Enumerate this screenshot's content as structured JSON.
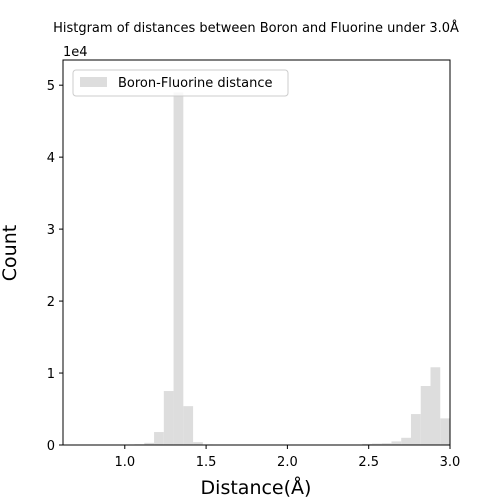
{
  "chart_data": {
    "type": "bar",
    "title": "Histgram of distances between Boron and Fluorine under 3.0Å",
    "xlabel": "Distance(Å)",
    "ylabel": "Count",
    "y_scale_label": "1e4",
    "xlim": [
      0.62,
      3.0
    ],
    "ylim": [
      0,
      53500
    ],
    "xticks": [
      1.0,
      1.5,
      2.0,
      2.5,
      3.0
    ],
    "xtick_labels": [
      "1.0",
      "1.5",
      "2.0",
      "2.5",
      "3.0"
    ],
    "yticks": [
      0,
      10000,
      20000,
      30000,
      40000,
      50000
    ],
    "ytick_labels": [
      "0",
      "1",
      "2",
      "3",
      "4",
      "5"
    ],
    "bar_color": "#dddddd",
    "grid": false,
    "legend_position": "upper-left",
    "series": [
      {
        "name": "Boron-Fluorine distance",
        "bins": [
          {
            "x0": 0.94,
            "x1": 1.0,
            "value": 30
          },
          {
            "x0": 1.0,
            "x1": 1.06,
            "value": 60
          },
          {
            "x0": 1.06,
            "x1": 1.12,
            "value": 100
          },
          {
            "x0": 1.12,
            "x1": 1.18,
            "value": 300
          },
          {
            "x0": 1.18,
            "x1": 1.24,
            "value": 1800
          },
          {
            "x0": 1.24,
            "x1": 1.3,
            "value": 7500
          },
          {
            "x0": 1.3,
            "x1": 1.36,
            "value": 49000
          },
          {
            "x0": 1.36,
            "x1": 1.42,
            "value": 5400
          },
          {
            "x0": 1.42,
            "x1": 1.48,
            "value": 400
          },
          {
            "x0": 1.48,
            "x1": 1.54,
            "value": 80
          },
          {
            "x0": 1.54,
            "x1": 1.6,
            "value": 30
          },
          {
            "x0": 2.4,
            "x1": 2.46,
            "value": 60
          },
          {
            "x0": 2.46,
            "x1": 2.52,
            "value": 150
          },
          {
            "x0": 2.52,
            "x1": 2.58,
            "value": 200
          },
          {
            "x0": 2.58,
            "x1": 2.64,
            "value": 250
          },
          {
            "x0": 2.64,
            "x1": 2.7,
            "value": 500
          },
          {
            "x0": 2.7,
            "x1": 2.76,
            "value": 1000
          },
          {
            "x0": 2.76,
            "x1": 2.82,
            "value": 4300
          },
          {
            "x0": 2.82,
            "x1": 2.88,
            "value": 8200
          },
          {
            "x0": 2.88,
            "x1": 2.94,
            "value": 10800
          },
          {
            "x0": 2.94,
            "x1": 3.0,
            "value": 3700
          }
        ]
      }
    ]
  }
}
